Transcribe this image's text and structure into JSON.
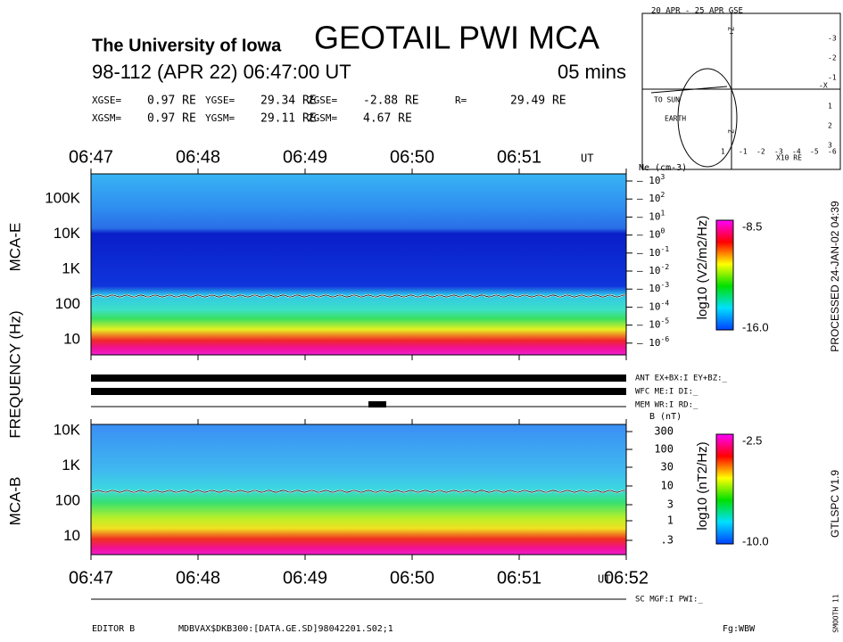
{
  "header": {
    "institution": "The University of Iowa",
    "title": "GEOTAIL PWI MCA",
    "date": "98-112 (APR 22) 06:47:00 UT",
    "duration": "05 mins"
  },
  "position": {
    "rows": [
      [
        {
          "label": "XGSE=",
          "value": "0.97 RE"
        },
        {
          "label": "YGSE=",
          "value": "29.34 RE"
        },
        {
          "label": "ZGSE=",
          "value": "-2.88 RE"
        },
        {
          "label": "R=",
          "value": "29.49 RE"
        }
      ],
      [
        {
          "label": "XGSM=",
          "value": "0.97 RE"
        },
        {
          "label": "YGSM=",
          "value": "29.11 RE"
        },
        {
          "label": "ZGSM=",
          "value": "4.67 RE"
        }
      ]
    ]
  },
  "orbit": {
    "title": "20 APR - 25 APR GSE",
    "sun": "TO SUN",
    "earth": "EARTH",
    "unit": "X10 RE",
    "x_axis": "-X",
    "z_plus": "+Z",
    "z_minus": "-Z",
    "xticks": [
      "1",
      "-1",
      "-2",
      "-3",
      "-4",
      "-5",
      "-6"
    ],
    "yticks": [
      "-3",
      "-2",
      "-1",
      "1",
      "2",
      "3"
    ]
  },
  "time_axis": {
    "top": [
      "06:47",
      "06:48",
      "06:49",
      "06:50",
      "06:51"
    ],
    "bottom": [
      "06:47",
      "06:48",
      "06:49",
      "06:50",
      "06:51",
      "06:52"
    ],
    "unit": "UT"
  },
  "mca_e": {
    "label": "MCA-E",
    "yticks": [
      "100K",
      "10K",
      "1K",
      "100",
      "10"
    ],
    "right_title": "Ne (cm-3)",
    "right_ticks": [
      "3",
      "2",
      "1",
      "0",
      "-1",
      "-2",
      "-3",
      "-4",
      "-5",
      "-6"
    ],
    "colorbar": {
      "max": "-8.5",
      "min": "-16.0",
      "label": "log10 (V2/m2/Hz)"
    }
  },
  "frequency_label": "FREQUENCY (Hz)",
  "status": [
    "ANT EX+BX:I  EY+BZ:_",
    "WFC ME:I    DI:_",
    "MEM WR:I    RD:_"
  ],
  "mca_b": {
    "label": "MCA-B",
    "yticks": [
      "10K",
      "1K",
      "100",
      "10"
    ],
    "right_title": "B (nT)",
    "right_ticks": [
      "300",
      "100",
      "30",
      "10",
      "3",
      "1",
      ".3"
    ],
    "colorbar": {
      "max": "-2.5",
      "min": "-10.0",
      "label": "log10 (nT2/Hz)"
    }
  },
  "side": {
    "processed": "PROCESSED 24-JAN-02  04:39",
    "version": "GTLSPC   V1.9",
    "smooth": "SMOOTH 11"
  },
  "footer": {
    "sc": "SC MGF:I   PWI:_",
    "editor": "EDITOR B",
    "file": "MDBVAX$DKB300:[DATA.GE.SD]98042201.S02;1",
    "fg": "Fg:WBW"
  }
}
